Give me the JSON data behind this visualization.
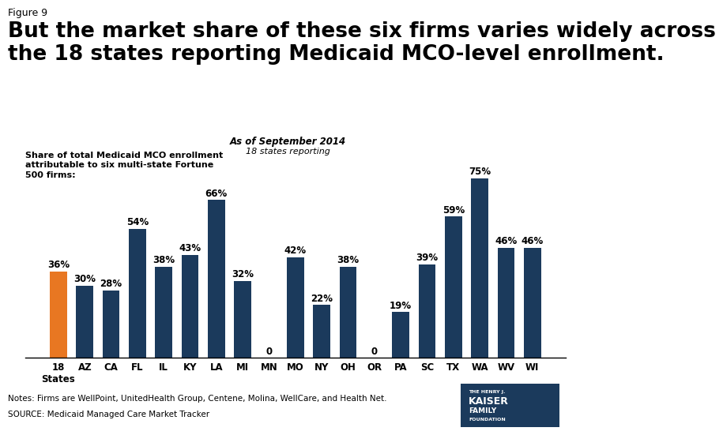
{
  "figure_label": "Figure 9",
  "title": "But the market share of these six firms varies widely across\nthe 18 states reporting Medicaid MCO-level enrollment.",
  "subtitle_line1": "As of September 2014",
  "subtitle_line2": "18 states reporting",
  "annotation": "Share of total Medicaid MCO enrollment\nattributable to six multi-state Fortune\n500 firms:",
  "categories": [
    "18\nStates",
    "AZ",
    "CA",
    "FL",
    "IL",
    "KY",
    "LA",
    "MI",
    "MN",
    "MO",
    "NY",
    "OH",
    "OR",
    "PA",
    "SC",
    "TX",
    "WA",
    "WV",
    "WI"
  ],
  "values": [
    36,
    30,
    28,
    54,
    38,
    43,
    66,
    32,
    0,
    42,
    22,
    38,
    0,
    19,
    39,
    59,
    75,
    46,
    46
  ],
  "bar_colors": [
    "#E87722",
    "#1B3A5C",
    "#1B3A5C",
    "#1B3A5C",
    "#1B3A5C",
    "#1B3A5C",
    "#1B3A5C",
    "#1B3A5C",
    "#1B3A5C",
    "#1B3A5C",
    "#1B3A5C",
    "#1B3A5C",
    "#1B3A5C",
    "#1B3A5C",
    "#1B3A5C",
    "#1B3A5C",
    "#1B3A5C",
    "#1B3A5C",
    "#1B3A5C"
  ],
  "notes": "Notes: Firms are WellPoint, UnitedHealth Group, Centene, Molina, WellCare, and Health Net.",
  "source": "SOURCE: Medicaid Managed Care Market Tracker",
  "ylim": [
    0,
    82
  ],
  "title_fontsize": 19,
  "figure_label_fontsize": 9,
  "bar_label_fontsize": 8.5,
  "tick_fontsize": 8.5,
  "notes_fontsize": 7.5,
  "dark_navy": "#1B3A5C",
  "orange": "#E87722",
  "background_color": "#FFFFFF",
  "logo_text": [
    "THE HENRY J.",
    "KAISER",
    "FAMILY",
    "FOUNDATION"
  ],
  "logo_color": "#1B3A5C"
}
